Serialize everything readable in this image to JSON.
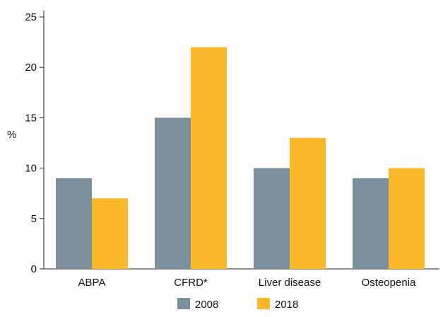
{
  "chart_data": {
    "type": "bar",
    "title": "",
    "xlabel": "",
    "ylabel": "%",
    "categories": [
      "ABPA",
      "CFRD*",
      "Liver disease",
      "Osteopenia"
    ],
    "series": [
      {
        "name": "2008",
        "color": "#7b909b",
        "values": [
          9,
          15,
          10,
          9
        ]
      },
      {
        "name": "2018",
        "color": "#fbb829",
        "values": [
          7,
          22,
          13,
          10
        ]
      }
    ],
    "ylim": [
      0,
      25
    ],
    "yticks": [
      0,
      5,
      10,
      15,
      20,
      25
    ],
    "grid": false,
    "legend_position": "bottom"
  }
}
